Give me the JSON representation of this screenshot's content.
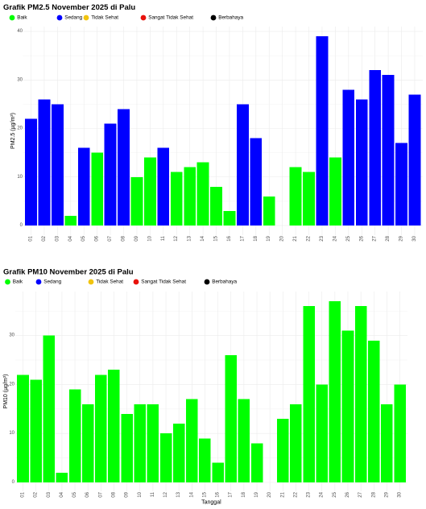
{
  "chart_data": [
    {
      "type": "bar",
      "title": "Grafik PM2.5 November 2025 di Palu",
      "ylabel": "PM2.5 (µg/m³)",
      "ylim": [
        0,
        41
      ],
      "yticks": [
        0,
        10,
        20,
        30,
        40
      ],
      "grid": true,
      "legend_position": "top-left",
      "legend": [
        {
          "name": "Baik",
          "color": "#00ff00"
        },
        {
          "name": "Sedang",
          "color": "#0000ff"
        },
        {
          "name": "Tidak Sehat",
          "color": "#f1c40f"
        },
        {
          "name": "Sangat Tidak Sehat",
          "color": "#e8120c"
        },
        {
          "name": "Berbahaya",
          "color": "#000000"
        }
      ],
      "categories": [
        "01",
        "02",
        "03",
        "04",
        "05",
        "06",
        "07",
        "08",
        "09",
        "10",
        "11",
        "12",
        "13",
        "14",
        "15",
        "16",
        "17",
        "18",
        "19",
        "20",
        "21",
        "22",
        "23",
        "24",
        "25",
        "26",
        "27",
        "28",
        "29",
        "30"
      ],
      "values": [
        22,
        26,
        25,
        2,
        16,
        15,
        21,
        24,
        10,
        14,
        16,
        11,
        12,
        13,
        8,
        3,
        25,
        18,
        6,
        null,
        12,
        11,
        39,
        14,
        28,
        26,
        32,
        31,
        17,
        27
      ],
      "bar_colors": [
        "#0000ff",
        "#0000ff",
        "#0000ff",
        "#00ff00",
        "#0000ff",
        "#00ff00",
        "#0000ff",
        "#0000ff",
        "#00ff00",
        "#00ff00",
        "#0000ff",
        "#00ff00",
        "#00ff00",
        "#00ff00",
        "#00ff00",
        "#00ff00",
        "#0000ff",
        "#0000ff",
        "#00ff00",
        null,
        "#00ff00",
        "#00ff00",
        "#0000ff",
        "#00ff00",
        "#0000ff",
        "#0000ff",
        "#0000ff",
        "#0000ff",
        "#0000ff",
        "#0000ff"
      ]
    },
    {
      "type": "bar",
      "title": "Grafik PM10 November 2025 di Palu",
      "xlabel": "Tanggal",
      "ylabel": "PM10 (µg/m³)",
      "ylim": [
        0,
        39
      ],
      "yticks": [
        0,
        10,
        20,
        30
      ],
      "grid": true,
      "legend_position": "top-left",
      "legend": [
        {
          "name": "Baik",
          "color": "#00ff00"
        },
        {
          "name": "Sedang",
          "color": "#0000ff"
        },
        {
          "name": "Tidak Sehat",
          "color": "#f1c40f"
        },
        {
          "name": "Sangat Tidak Sehat",
          "color": "#e8120c"
        },
        {
          "name": "Berbahaya",
          "color": "#000000"
        }
      ],
      "categories": [
        "01",
        "02",
        "03",
        "04",
        "05",
        "06",
        "07",
        "08",
        "09",
        "10",
        "11",
        "12",
        "13",
        "14",
        "15",
        "16",
        "17",
        "18",
        "19",
        "20",
        "21",
        "22",
        "23",
        "24",
        "25",
        "26",
        "27",
        "28",
        "29",
        "30"
      ],
      "values": [
        22,
        21,
        30,
        2,
        19,
        16,
        22,
        23,
        14,
        16,
        16,
        10,
        12,
        17,
        9,
        4,
        26,
        17,
        8,
        null,
        13,
        16,
        36,
        20,
        37,
        31,
        36,
        29,
        16,
        20
      ],
      "bar_colors": [
        "#00ff00",
        "#00ff00",
        "#00ff00",
        "#00ff00",
        "#00ff00",
        "#00ff00",
        "#00ff00",
        "#00ff00",
        "#00ff00",
        "#00ff00",
        "#00ff00",
        "#00ff00",
        "#00ff00",
        "#00ff00",
        "#00ff00",
        "#00ff00",
        "#00ff00",
        "#00ff00",
        "#00ff00",
        null,
        "#00ff00",
        "#00ff00",
        "#00ff00",
        "#00ff00",
        "#00ff00",
        "#00ff00",
        "#00ff00",
        "#00ff00",
        "#00ff00",
        "#00ff00"
      ]
    }
  ]
}
